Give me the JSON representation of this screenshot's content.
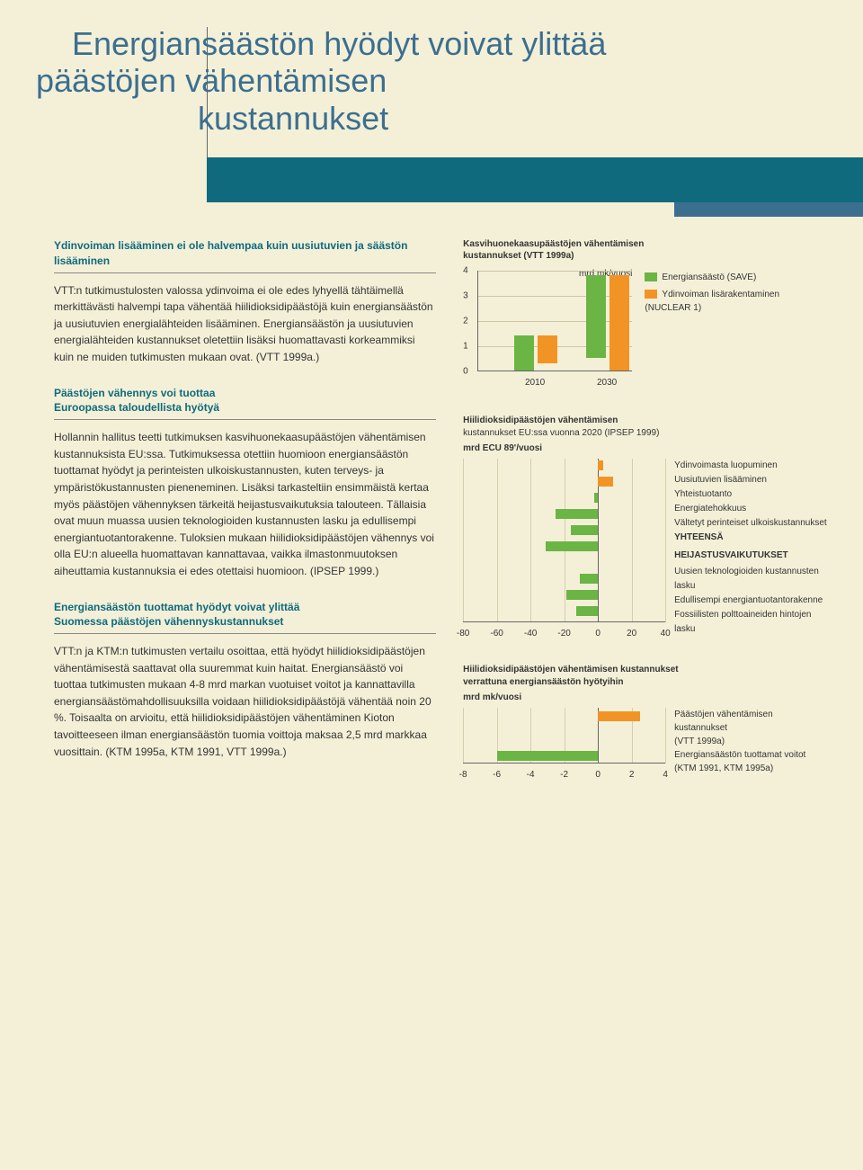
{
  "title": {
    "l1": "Energiansäästön hyödyt voivat ylittää",
    "l2": "päästöjen vähentämisen",
    "l3": "kustannukset",
    "color": "#3c6f8f"
  },
  "header_bars": {
    "teal": "#0f6a7d",
    "small": "#3c6f8f"
  },
  "left_col": {
    "s1_head": "Ydinvoiman lisääminen ei ole halvempaa kuin uusiutuvien ja säästön lisääminen",
    "s1_body": "VTT:n tutkimustulosten valossa ydinvoima ei ole edes lyhyellä tähtäimellä merkittävästi halvempi tapa vähentää hiilidioksidipäästöjä kuin energiansäästön ja uusiutuvien energialähteiden lisääminen. Energiansäästön ja uusiutuvien energialähteiden kustannukset oletettiin lisäksi huomattavasti korkeammiksi kuin ne muiden tutkimusten mukaan ovat. (VTT 1999a.)",
    "s2_head_l1": "Päästöjen vähennys voi tuottaa",
    "s2_head_l2": "Euroopassa taloudellista hyötyä",
    "s2_body": "Hollannin hallitus teetti tutkimuksen kasvihuonekaasupäästöjen vähentämisen kustannuksista EU:ssa. Tutkimuksessa otettiin huomioon energiansäästön tuottamat hyödyt ja perinteisten ulkoiskustannusten, kuten terveys- ja ympäristökustannusten pieneneminen. Lisäksi tarkasteltiin ensimmäistä kertaa myös päästöjen vähennyksen tärkeitä heijastusvaikutuksia talouteen. Tällaisia ovat muun muassa uusien teknologioiden kustannusten lasku ja edullisempi energiantuotantorakenne. Tuloksien mukaan hiilidioksidipäästöjen vähennys voi olla EU:n alueella huomattavan kannattavaa, vaikka ilmastonmuutoksen aiheuttamia kustannuksia ei edes otettaisi huomioon. (IPSEP 1999.)",
    "s3_head_l1": "Energiansäästön tuottamat hyödyt voivat ylittää",
    "s3_head_l2": "Suomessa päästöjen vähennyskustannukset",
    "s3_body": "VTT:n ja KTM:n tutkimusten vertailu osoittaa, että hyödyt hiilidioksidipäästöjen vähentämisestä saattavat olla suuremmat kuin haitat. Energiansäästö voi tuottaa tutkimusten mukaan 4-8 mrd markan vuotuiset voitot ja kannattavilla energiansäästömahdollisuuksilla voidaan hiilidioksidipäästöjä vähentää noin 20 %. Toisaalta on arvioitu, että hiilidioksidipäästöjen vähentäminen Kioton tavoitteeseen ilman energiansäästön tuomia voittoja maksaa 2,5 mrd markkaa vuosittain. (KTM 1995a, KTM 1991, VTT 1999a.)"
  },
  "chart1": {
    "type": "bar",
    "title_l1": "Kasvihuonekaasupäästöjen vähentämisen",
    "title_l2": "kustannukset (VTT 1999a)",
    "unit": "mrd mk/vuosi",
    "categories": [
      "2010",
      "2030"
    ],
    "series": [
      {
        "name": "Energiansäästö (SAVE)",
        "color": "#6bb544",
        "values": [
          1.4,
          3.3
        ]
      },
      {
        "name": "Ydinvoiman lisärakentaminen (NUCLEAR 1)",
        "color": "#f29425",
        "values": [
          1.1,
          3.8
        ]
      }
    ],
    "ylim": [
      0,
      4
    ],
    "ytick_step": 1,
    "grid_color": "#ccc6a5",
    "axis_color": "#666666"
  },
  "chart2": {
    "type": "bar-horizontal",
    "title": "Hiilidioksidipäästöjen vähentämisen",
    "subtitle": "kustannukset EU:ssa vuonna 2020 (IPSEP 1999)",
    "unit": "mrd ECU 89'/vuosi",
    "xlim": [
      -80,
      40
    ],
    "xtick_step": 20,
    "zero_color": "#666666",
    "grid_color": "#d4ceac",
    "rows": [
      {
        "label": "Ydinvoimasta luopuminen",
        "value": 3,
        "color": "#f29425"
      },
      {
        "label": "Uusiutuvien lisääminen",
        "value": 9,
        "color": "#f29425"
      },
      {
        "label": "Yhteistuotanto",
        "value": -2,
        "color": "#6bb544"
      },
      {
        "label": "Energiatehokkuus",
        "value": -25,
        "color": "#6bb544"
      },
      {
        "label": "Vältetyt perinteiset ulkoiskustannukset",
        "value": -16,
        "color": "#6bb544"
      },
      {
        "label": "YHTEENSÄ",
        "value": -31,
        "color": "#6bb544",
        "bold": true
      },
      {
        "label": "HEIJASTUSVAIKUTUKSET",
        "header": true
      },
      {
        "label": "Uusien teknologioiden kustannusten lasku",
        "value": -11,
        "color": "#6bb544"
      },
      {
        "label": "Edullisempi energiantuotantorakenne",
        "value": -19,
        "color": "#6bb544"
      },
      {
        "label": "Fossiilisten polttoaineiden hintojen lasku",
        "value": -13,
        "color": "#6bb544"
      }
    ]
  },
  "chart3": {
    "type": "bar-horizontal",
    "title": "Hiilidioksidipäästöjen vähentämisen kustannukset",
    "subtitle": "verrattuna energiansäästön hyötyihin",
    "unit": "mrd mk/vuosi",
    "xlim": [
      -8,
      4
    ],
    "xtick_step": 2,
    "zero_color": "#666666",
    "grid_color": "#d4ceac",
    "rows": [
      {
        "label_l1": "Päästöjen vähentämisen kustannukset",
        "label_l2": "(VTT 1999a)",
        "value": 2.5,
        "color": "#f29425"
      },
      {
        "label_l1": "Energiansäästön tuottamat voitot",
        "label_l2": "(KTM 1991, KTM 1995a)",
        "value": -6.0,
        "color": "#6bb544"
      }
    ]
  }
}
